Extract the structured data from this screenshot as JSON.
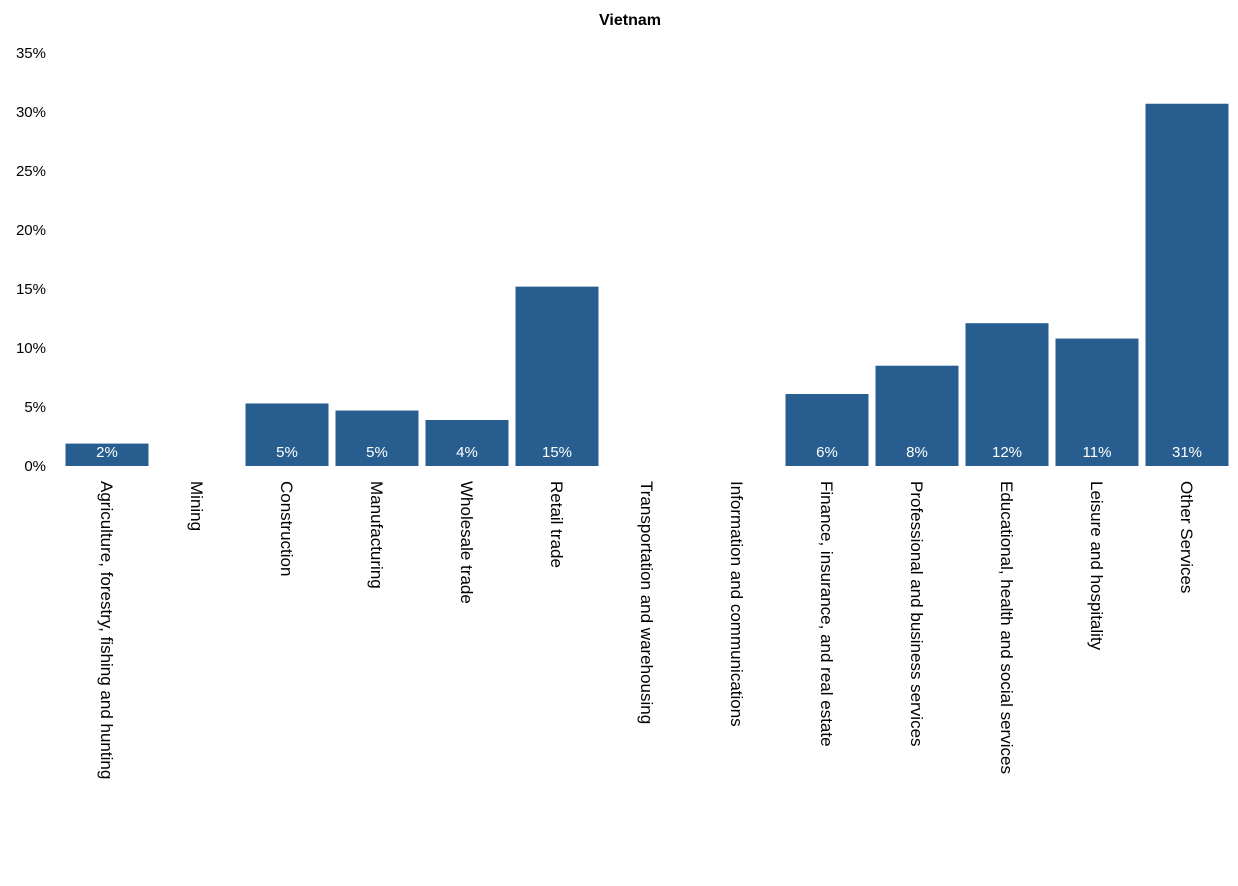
{
  "chart_data": {
    "type": "bar",
    "title": "Vietnam",
    "xlabel": "",
    "ylabel": "",
    "ylim": [
      0,
      0.35
    ],
    "yticks": [
      "0%",
      "5%",
      "10%",
      "15%",
      "20%",
      "25%",
      "30%",
      "35%"
    ],
    "categories": [
      "Agriculture, forestry, fishing and hunting",
      "Mining",
      "Construction",
      "Manufacturing",
      "Wholesale trade",
      "Retail trade",
      "Transportation and warehousing",
      "Information and communications",
      "Finance, insurance, and real estate",
      "Professional and business services",
      "Educational, health and social services",
      "Leisure and hospitality",
      "Other Services"
    ],
    "values": [
      0.019,
      0,
      0.053,
      0.047,
      0.039,
      0.152,
      0,
      0,
      0.061,
      0.085,
      0.121,
      0.108,
      0.307
    ],
    "data_labels": [
      "2%",
      "",
      "5%",
      "5%",
      "4%",
      "15%",
      "",
      "",
      "6%",
      "8%",
      "12%",
      "11%",
      "31%"
    ],
    "bar_color": "#285e8f",
    "grid": false,
    "legend": "none"
  }
}
